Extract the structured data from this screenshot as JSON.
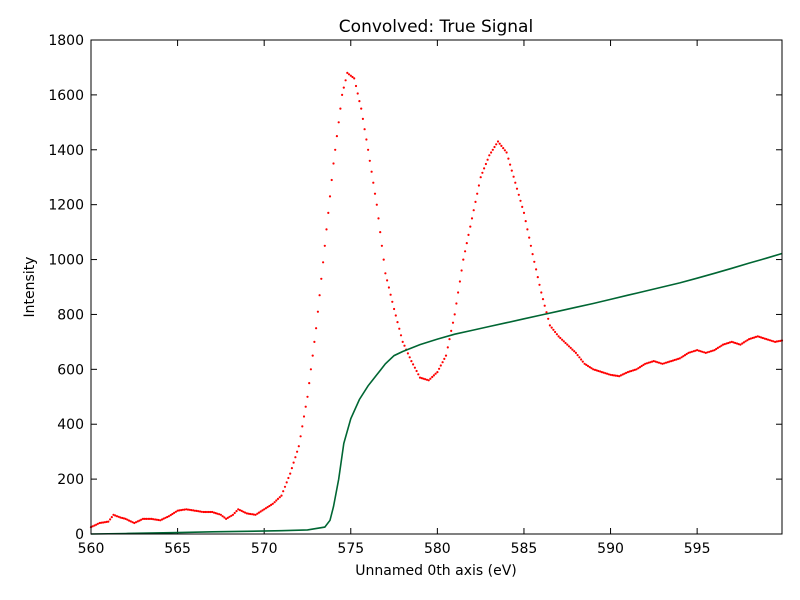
{
  "chart_data": {
    "type": "scatter",
    "title": "Convolved: True Signal",
    "xlabel": "Unnamed 0th axis (eV)",
    "ylabel": "Intensity",
    "xlim": [
      560,
      599.9
    ],
    "ylim": [
      0,
      1800
    ],
    "xticks": [
      560,
      565,
      570,
      575,
      580,
      585,
      590,
      595
    ],
    "yticks": [
      0,
      200,
      400,
      600,
      800,
      1000,
      1200,
      1400,
      1600,
      1800
    ],
    "grid": false,
    "colors": {
      "measured": "#ff0000",
      "background": "#006633"
    },
    "series": [
      {
        "kind": "points",
        "points": [
          [
            560.0,
            25
          ],
          [
            560.5,
            40
          ],
          [
            561.0,
            45
          ],
          [
            561.3,
            70
          ],
          [
            561.7,
            60
          ],
          [
            562.0,
            55
          ],
          [
            562.5,
            40
          ],
          [
            563.0,
            55
          ],
          [
            563.5,
            55
          ],
          [
            564.0,
            50
          ],
          [
            564.5,
            65
          ],
          [
            565.0,
            85
          ],
          [
            565.5,
            90
          ],
          [
            566.0,
            85
          ],
          [
            566.5,
            80
          ],
          [
            567.0,
            80
          ],
          [
            567.5,
            70
          ],
          [
            567.8,
            55
          ],
          [
            568.2,
            70
          ],
          [
            568.5,
            90
          ],
          [
            569.0,
            75
          ],
          [
            569.5,
            70
          ],
          [
            570.0,
            90
          ],
          [
            570.5,
            110
          ],
          [
            571.0,
            140
          ],
          [
            571.5,
            220
          ],
          [
            572.0,
            320
          ],
          [
            572.5,
            500
          ],
          [
            573.0,
            750
          ],
          [
            573.5,
            1050
          ],
          [
            574.0,
            1350
          ],
          [
            574.5,
            1600
          ],
          [
            574.8,
            1680
          ],
          [
            575.2,
            1660
          ],
          [
            575.6,
            1550
          ],
          [
            576.0,
            1400
          ],
          [
            576.5,
            1200
          ],
          [
            577.0,
            950
          ],
          [
            577.5,
            820
          ],
          [
            578.0,
            700
          ],
          [
            578.5,
            630
          ],
          [
            579.0,
            570
          ],
          [
            579.5,
            560
          ],
          [
            580.0,
            590
          ],
          [
            580.5,
            650
          ],
          [
            581.0,
            800
          ],
          [
            581.5,
            1000
          ],
          [
            582.0,
            1150
          ],
          [
            582.5,
            1300
          ],
          [
            583.0,
            1380
          ],
          [
            583.5,
            1430
          ],
          [
            584.0,
            1390
          ],
          [
            584.5,
            1280
          ],
          [
            585.0,
            1170
          ],
          [
            585.5,
            1020
          ],
          [
            586.0,
            880
          ],
          [
            586.5,
            760
          ],
          [
            587.0,
            720
          ],
          [
            587.5,
            690
          ],
          [
            588.0,
            660
          ],
          [
            588.5,
            620
          ],
          [
            589.0,
            600
          ],
          [
            589.5,
            590
          ],
          [
            590.0,
            580
          ],
          [
            590.5,
            575
          ],
          [
            591.0,
            590
          ],
          [
            591.5,
            600
          ],
          [
            592.0,
            620
          ],
          [
            592.5,
            630
          ],
          [
            593.0,
            620
          ],
          [
            593.5,
            630
          ],
          [
            594.0,
            640
          ],
          [
            594.5,
            660
          ],
          [
            595.0,
            670
          ],
          [
            595.5,
            660
          ],
          [
            596.0,
            670
          ],
          [
            596.5,
            690
          ],
          [
            597.0,
            700
          ],
          [
            597.5,
            690
          ],
          [
            598.0,
            710
          ],
          [
            598.5,
            720
          ],
          [
            599.0,
            710
          ],
          [
            599.5,
            700
          ],
          [
            599.9,
            705
          ]
        ]
      },
      {
        "kind": "line",
        "points": [
          [
            560.0,
            0
          ],
          [
            562.0,
            2
          ],
          [
            565.0,
            5
          ],
          [
            567.0,
            8
          ],
          [
            569.0,
            10
          ],
          [
            571.0,
            12
          ],
          [
            572.5,
            15
          ],
          [
            573.5,
            25
          ],
          [
            573.8,
            50
          ],
          [
            574.0,
            100
          ],
          [
            574.3,
            200
          ],
          [
            574.6,
            330
          ],
          [
            575.0,
            420
          ],
          [
            575.5,
            490
          ],
          [
            576.0,
            540
          ],
          [
            576.5,
            580
          ],
          [
            577.0,
            620
          ],
          [
            577.5,
            650
          ],
          [
            578.0,
            665
          ],
          [
            579.0,
            690
          ],
          [
            580.0,
            710
          ],
          [
            581.0,
            728
          ],
          [
            582.0,
            742
          ],
          [
            583.0,
            756
          ],
          [
            584.0,
            770
          ],
          [
            585.0,
            784
          ],
          [
            586.0,
            798
          ],
          [
            587.0,
            812
          ],
          [
            588.0,
            826
          ],
          [
            589.0,
            840
          ],
          [
            590.0,
            855
          ],
          [
            591.0,
            870
          ],
          [
            592.0,
            885
          ],
          [
            593.0,
            900
          ],
          [
            594.0,
            915
          ],
          [
            595.0,
            932
          ],
          [
            596.0,
            950
          ],
          [
            597.0,
            968
          ],
          [
            598.0,
            987
          ],
          [
            599.0,
            1005
          ],
          [
            599.9,
            1022
          ]
        ]
      }
    ]
  }
}
